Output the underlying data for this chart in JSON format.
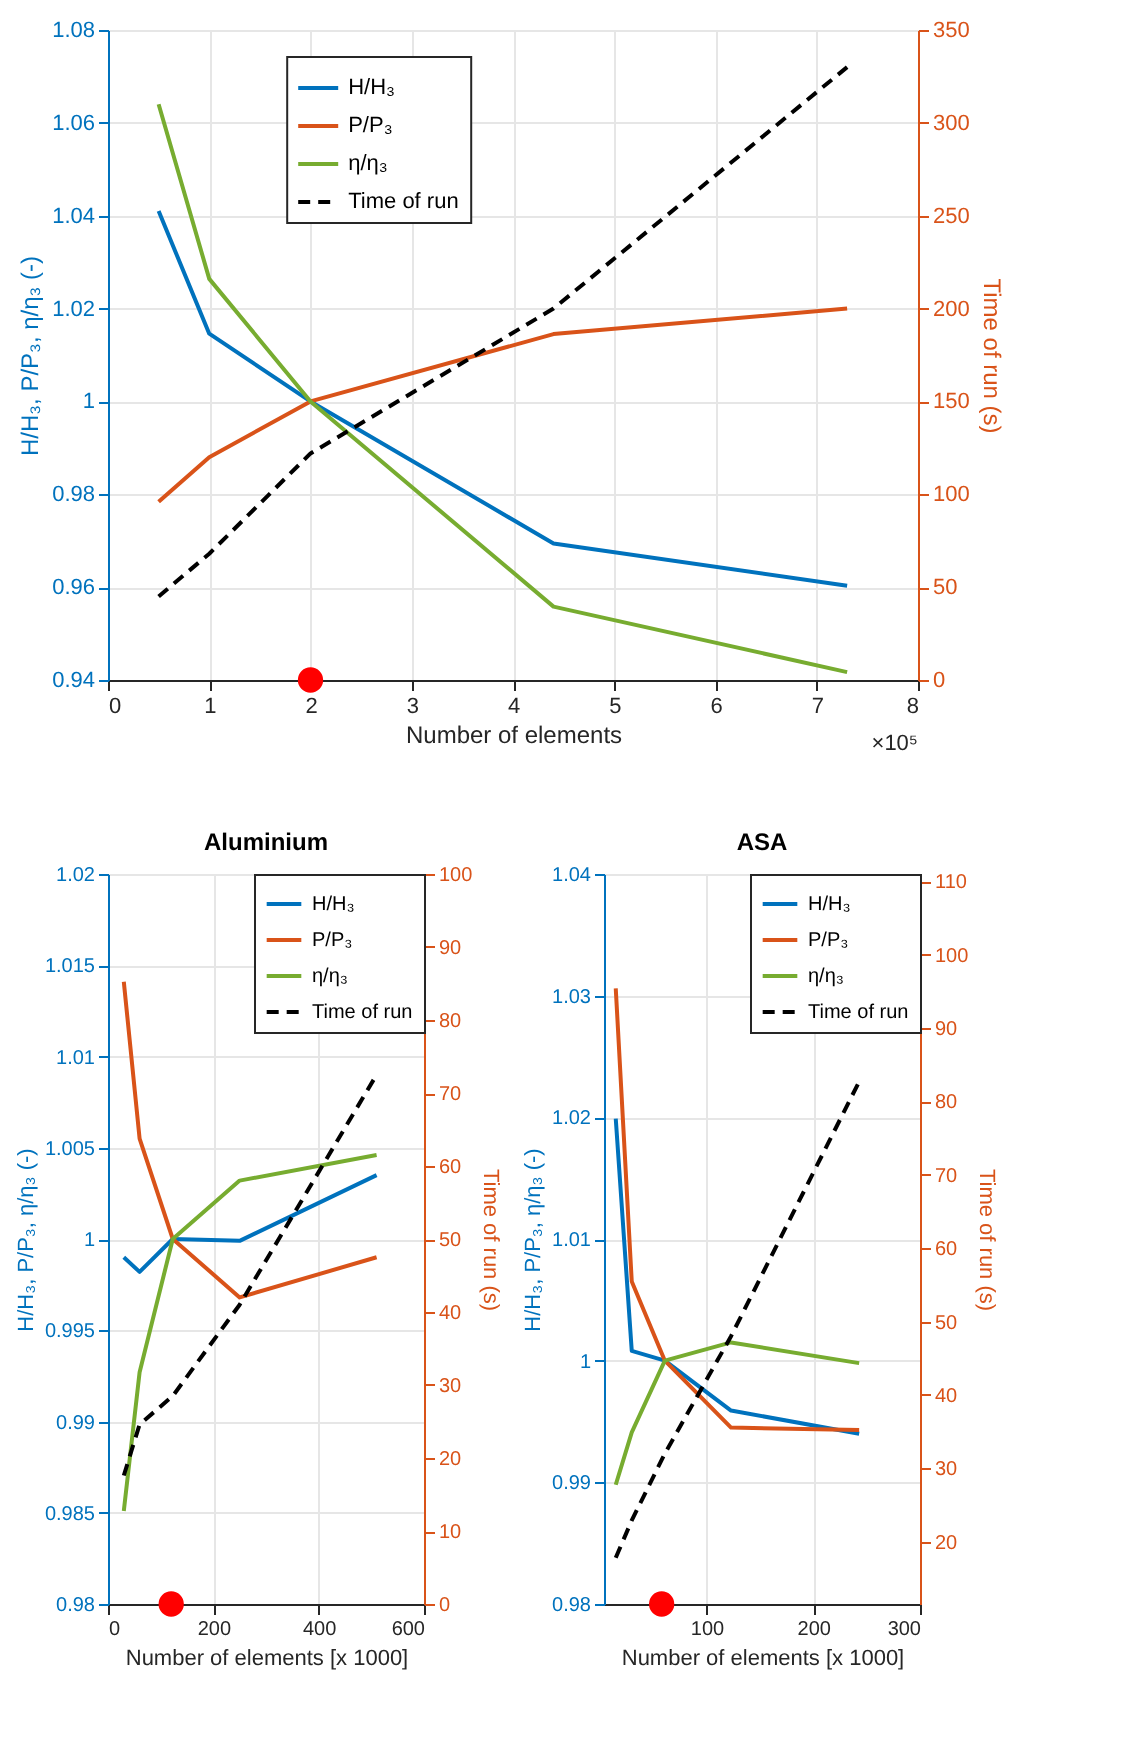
{
  "chart_data": [
    {
      "type": "line",
      "xlabel": "Number of elements",
      "ylabel": "H/H₃, P/P₃, η/η₃ (-)",
      "y2label": "Time of run (s)",
      "annotations": [
        "×10⁵"
      ],
      "x": [
        0.5,
        1,
        2,
        4.4,
        7.3
      ],
      "xlim": [
        0,
        8
      ],
      "xticks": [
        0,
        1,
        2,
        3,
        4,
        5,
        6,
        7,
        8
      ],
      "ylim": [
        0.94,
        1.08
      ],
      "yticks": [
        0.94,
        0.96,
        0.98,
        1,
        1.02,
        1.04,
        1.06,
        1.08
      ],
      "y2lim": [
        0,
        350
      ],
      "y2ticks": [
        0,
        50,
        100,
        150,
        200,
        250,
        300,
        350
      ],
      "grid": true,
      "legend": "top left",
      "series": [
        {
          "name": "H/H₃",
          "color": "#0072bd",
          "values": [
            1.041,
            1.0146,
            1,
            0.9694,
            0.9603
          ]
        },
        {
          "name": "P/P₃",
          "color": "#d95319",
          "values": [
            0.9784,
            0.988,
            1,
            1.0145,
            1.02
          ]
        },
        {
          "name": "η/η₃",
          "color": "#77ac30",
          "values": [
            1.064,
            1.0264,
            1,
            0.9558,
            0.9417
          ]
        },
        {
          "name": "Time of run",
          "color": "#000000",
          "axis": "y2",
          "line_style": "dashed",
          "values": [
            45,
            68,
            122,
            200,
            330
          ]
        },
        {
          "type": "scatter",
          "color": "#ff0000",
          "marker": "circle",
          "x": [
            2
          ],
          "values": [
            0.94
          ]
        }
      ]
    },
    {
      "type": "line",
      "title": "Aluminium",
      "xlabel": "Number of elements [x 1000]",
      "ylabel": "H/H₃, P/P₃, η/η₃ (-)",
      "y2label": "Time of run (s)",
      "x": [
        30,
        60,
        123,
        250,
        510
      ],
      "xlim": [
        0,
        600
      ],
      "xticks": [
        0,
        200,
        400,
        600
      ],
      "ylim": [
        0.98,
        1.02
      ],
      "yticks": [
        0.98,
        0.985,
        0.99,
        0.995,
        1,
        1.005,
        1.01,
        1.015,
        1.02
      ],
      "y2lim": [
        0,
        100
      ],
      "y2ticks": [
        0,
        10,
        20,
        30,
        40,
        50,
        60,
        70,
        80,
        90,
        100
      ],
      "grid": true,
      "legend": "top right",
      "series": [
        {
          "name": "H/H₃",
          "color": "#0072bd",
          "values": [
            0.999,
            0.9982,
            1,
            0.9999,
            1.0035
          ]
        },
        {
          "name": "P/P₃",
          "color": "#d95319",
          "values": [
            1.0141,
            1.0055,
            1,
            0.9968,
            0.999
          ]
        },
        {
          "name": "η/η₃",
          "color": "#77ac30",
          "values": [
            0.9851,
            0.9927,
            1,
            1.0032,
            1.0046
          ]
        },
        {
          "name": "Time of run",
          "color": "#000000",
          "axis": "y2",
          "line_style": "dashed",
          "values": [
            17.6,
            24.6,
            28.5,
            41,
            72.5
          ]
        },
        {
          "type": "scatter",
          "color": "#ff0000",
          "marker": "circle",
          "x": [
            120
          ],
          "values": [
            0.98
          ]
        }
      ]
    },
    {
      "type": "line",
      "title": "ASA",
      "xlabel": "Number of elements [x 1000]",
      "ylabel": "H/H₃, P/P₃, η/η₃ (-)",
      "y2label": "Time of run (s)",
      "x": [
        15,
        30,
        61,
        123,
        243
      ],
      "xlim": [
        4,
        300
      ],
      "xticks": [
        100,
        200,
        300
      ],
      "ylim": [
        0.98,
        1.04
      ],
      "yticks": [
        0.98,
        0.99,
        1,
        1.01,
        1.02,
        1.03,
        1.04
      ],
      "y2lim": [
        11.5,
        111
      ],
      "y2ticks": [
        20,
        30,
        40,
        50,
        60,
        70,
        80,
        90,
        100,
        110
      ],
      "grid": true,
      "legend": "top right",
      "series": [
        {
          "name": "H/H₃",
          "color": "#0072bd",
          "values": [
            1.0199,
            1.0008,
            1,
            0.9959,
            0.994
          ]
        },
        {
          "name": "P/P₃",
          "color": "#d95319",
          "values": [
            1.0306,
            1.0065,
            1,
            0.9945,
            0.9943
          ]
        },
        {
          "name": "η/η₃",
          "color": "#77ac30",
          "values": [
            0.9898,
            0.9941,
            1,
            1.0015,
            0.9998
          ]
        },
        {
          "name": "Time of run",
          "color": "#000000",
          "axis": "y2",
          "line_style": "dashed",
          "values": [
            17.8,
            22.9,
            32,
            48,
            82.7
          ]
        },
        {
          "type": "scatter",
          "color": "#ff0000",
          "marker": "circle",
          "x": [
            58
          ],
          "values": [
            0.98
          ]
        }
      ]
    }
  ]
}
